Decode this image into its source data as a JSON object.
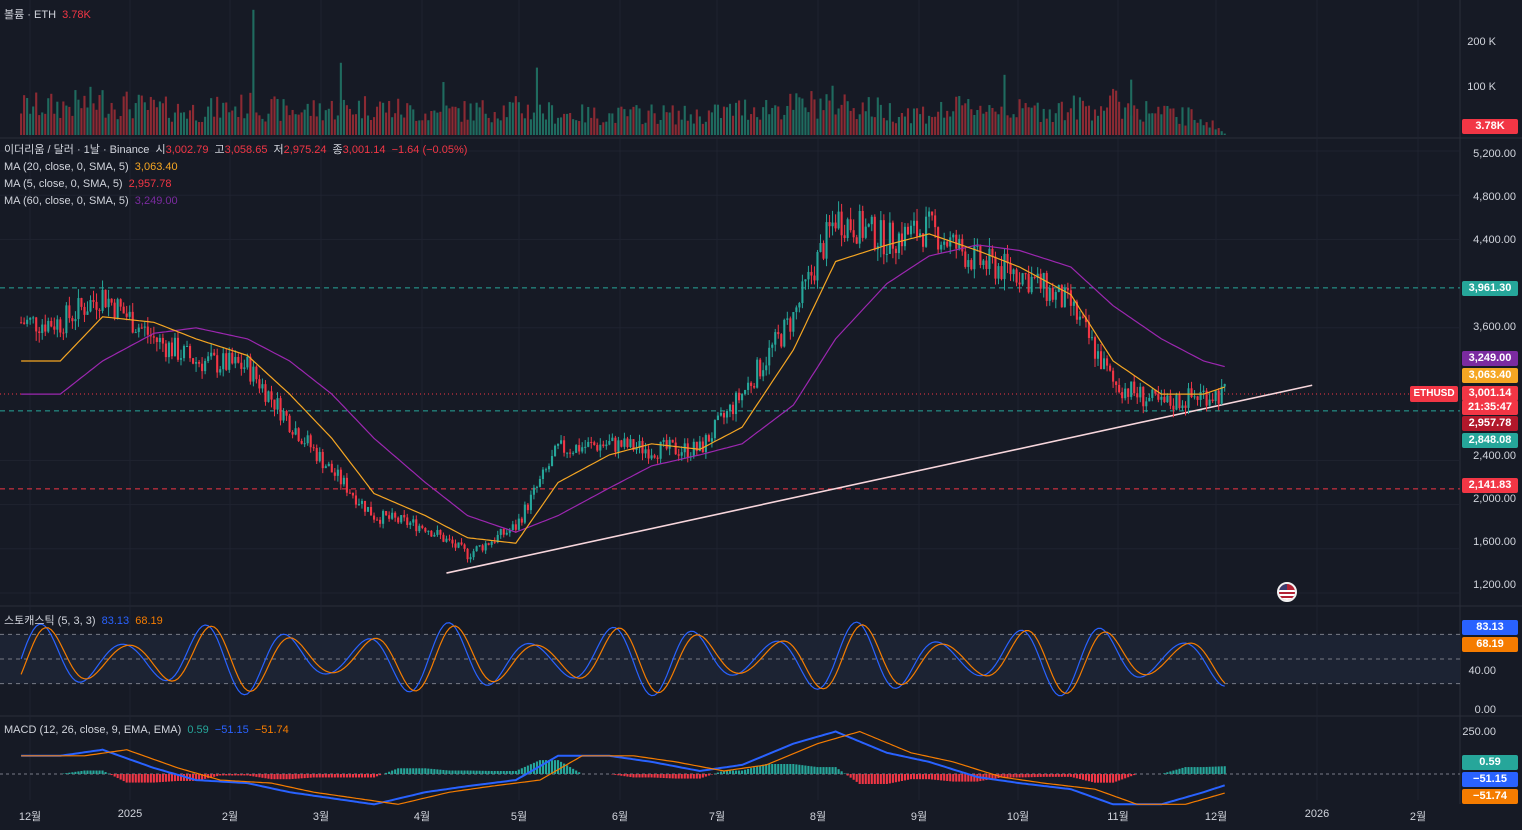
{
  "volume_legend": {
    "label": "볼륨 · ETH",
    "value": "3.78K"
  },
  "volume_axis": {
    "ticks": [
      "200 K",
      "100 K"
    ],
    "current_badge": "3.78K"
  },
  "main_legend": {
    "symbol": "이더리움 / 달러 · 1날 · Binance",
    "o_label": "시",
    "o": "3,002.79",
    "h_label": "고",
    "h": "3,058.65",
    "l_label": "저",
    "l": "2,975.24",
    "c_label": "종",
    "c": "3,001.14",
    "change": "−1.64 (−0.05%)"
  },
  "ma_legends": [
    {
      "label": "MA (20, close, 0, SMA, 5)",
      "value": "3,063.40",
      "color": "#f5a623"
    },
    {
      "label": "MA (5, close, 0, SMA, 5)",
      "value": "2,957.78",
      "color": "#f23645"
    },
    {
      "label": "MA (60, close, 0, SMA, 5)",
      "value": "3,249.00",
      "color": "#9c27b0"
    }
  ],
  "price_axis": {
    "ticks": [
      "5,200.00",
      "4,800.00",
      "4,400.00",
      "3,600.00",
      "2,400.00",
      "2,000.00",
      "1,600.00",
      "1,200.00"
    ]
  },
  "price_badges": [
    {
      "text": "3,961.30",
      "bg": "#26a69a"
    },
    {
      "text": "3,249.00",
      "bg": "#7b2ba0"
    },
    {
      "text": "3,063.40",
      "bg": "#f5a623"
    },
    {
      "text": "3,001.14",
      "bg": "#f23645"
    },
    {
      "text": "21:35:47",
      "bg": "#f23645"
    },
    {
      "text": "2,957.78",
      "bg": "#b2182b"
    },
    {
      "text": "2,848.08",
      "bg": "#26a69a"
    },
    {
      "text": "2,141.83",
      "bg": "#f23645"
    }
  ],
  "symbol_tag": "ETHUSD",
  "stoch_legend": {
    "label": "스토캐스틱 (5, 3, 3)",
    "k": "83.13",
    "d": "68.19"
  },
  "stoch_axis": {
    "ticks": [
      "40.00",
      "0.00"
    ],
    "badges": [
      {
        "text": "83.13",
        "bg": "#2962ff"
      },
      {
        "text": "68.19",
        "bg": "#f57c00"
      }
    ]
  },
  "macd_legend": {
    "label": "MACD (12, 26, close, 9, EMA, EMA)",
    "hist": "0.59",
    "macd": "−51.15",
    "signal": "−51.74"
  },
  "macd_axis": {
    "ticks": [
      "250.00"
    ],
    "badges": [
      {
        "text": "0.59",
        "bg": "#26a69a"
      },
      {
        "text": "−51.15",
        "bg": "#2962ff"
      },
      {
        "text": "−51.74",
        "bg": "#f57c00"
      }
    ]
  },
  "x_axis": {
    "labels": [
      "12월",
      "2025",
      "2월",
      "3월",
      "4월",
      "5월",
      "6월",
      "7월",
      "8월",
      "9월",
      "10월",
      "11월",
      "12월",
      "2026",
      "2월"
    ]
  },
  "chart_data": {
    "type": "candlestick",
    "price_ylim": [
      1100,
      5300
    ],
    "x": [
      "2024-12-01",
      "2024-12-15",
      "2025-01-01",
      "2025-01-15",
      "2025-02-01",
      "2025-02-15",
      "2025-03-01",
      "2025-03-15",
      "2025-04-01",
      "2025-04-15",
      "2025-05-01",
      "2025-05-15",
      "2025-06-01",
      "2025-06-15",
      "2025-07-01",
      "2025-07-15",
      "2025-08-01",
      "2025-08-15",
      "2025-09-01",
      "2025-09-15",
      "2025-10-01",
      "2025-10-15",
      "2025-11-01",
      "2025-11-15",
      "2025-12-01",
      "2025-12-15",
      "2025-12-22"
    ],
    "close": [
      3650,
      3900,
      3500,
      3300,
      3250,
      2750,
      2300,
      1900,
      1800,
      1550,
      1800,
      2500,
      2550,
      2500,
      2500,
      3000,
      3700,
      4600,
      4400,
      4500,
      4200,
      4100,
      3800,
      3100,
      2900,
      3000,
      3001
    ],
    "ma_20": [
      3300,
      3700,
      3650,
      3500,
      3350,
      3000,
      2600,
      2100,
      1900,
      1700,
      1650,
      2200,
      2450,
      2550,
      2500,
      2700,
      3400,
      4200,
      4350,
      4450,
      4300,
      4150,
      3900,
      3300,
      3000,
      3000,
      3063
    ],
    "ma_60": [
      3000,
      3300,
      3550,
      3600,
      3500,
      3300,
      3000,
      2600,
      2200,
      1900,
      1750,
      1900,
      2150,
      2350,
      2450,
      2550,
      2900,
      3500,
      4000,
      4250,
      4350,
      4300,
      4150,
      3800,
      3500,
      3300,
      3249
    ],
    "horizontal_levels": [
      3961.3,
      2848.08,
      2141.83
    ],
    "trendline": {
      "from": [
        "2025-04-08",
        1380
      ],
      "to": [
        "2026-01-20",
        3080
      ]
    },
    "volume_ylim": [
      0,
      270000
    ],
    "volume": [
      60000,
      70000,
      55000,
      50000,
      60000,
      50000,
      55000,
      60000,
      45000,
      50000,
      55000,
      45000,
      40000,
      45000,
      40000,
      55000,
      60000,
      70000,
      50000,
      45000,
      60000,
      50000,
      55000,
      65000,
      45000,
      35000,
      3780
    ],
    "volume_spikes": [
      {
        "x": "2025-02-03",
        "v": 260000
      },
      {
        "x": "2025-03-04",
        "v": 150000
      },
      {
        "x": "2025-04-07",
        "v": 110000
      },
      {
        "x": "2025-05-08",
        "v": 140000
      },
      {
        "x": "2025-10-10",
        "v": 125000
      },
      {
        "x": "2025-11-21",
        "v": 115000
      }
    ],
    "stoch_ylim": [
      0,
      100
    ],
    "stoch_levels": [
      80,
      50,
      20
    ],
    "macd_ylim": [
      -150,
      300
    ]
  }
}
